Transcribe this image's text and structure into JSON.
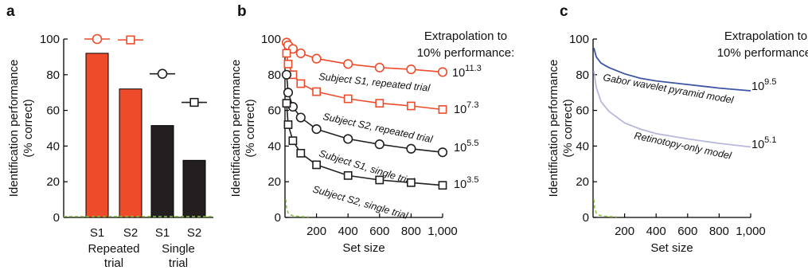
{
  "panel_labels": [
    "a",
    "b",
    "c"
  ],
  "colors": {
    "red": "#ee4b2b",
    "black": "#231f20",
    "chance": "#8cc63f",
    "gabor": "#3d55a3",
    "retino": "#b8b8dd"
  },
  "chart_data": [
    {
      "panel": "a",
      "type": "bar",
      "xlabel": "",
      "ylabel_lines": [
        "Identification performance",
        "(% correct)"
      ],
      "ylim": [
        0,
        100
      ],
      "yticks": [
        "0",
        "20",
        "40",
        "60",
        "80",
        "100"
      ],
      "categories": [
        "S1",
        "S2",
        "S1",
        "S2"
      ],
      "groups": [
        {
          "label_lines": [
            "Repeated",
            "trial"
          ]
        },
        {
          "label_lines": [
            "Single",
            "trial"
          ]
        }
      ],
      "values": [
        92,
        72,
        51.5,
        32
      ],
      "marker_values": [
        100,
        99.5,
        80.5,
        64.5
      ],
      "markers": [
        "circle",
        "square",
        "circle",
        "square"
      ],
      "bar_colors": [
        "red",
        "red",
        "black",
        "black"
      ],
      "chance_level": 0.5
    },
    {
      "panel": "b",
      "type": "line",
      "xlabel": "Set size",
      "ylabel_lines": [
        "Identification performance",
        "(% correct)"
      ],
      "xlim": [
        0,
        1000
      ],
      "ylim": [
        0,
        100
      ],
      "xticks": [
        "200",
        "400",
        "600",
        "800",
        "1,000"
      ],
      "yticks": [
        "0",
        "20",
        "40",
        "60",
        "80",
        "100"
      ],
      "extrapolation_title_lines": [
        "Extrapolation to",
        "10% performance:"
      ],
      "x": [
        10,
        20,
        50,
        100,
        200,
        400,
        600,
        800,
        1000
      ],
      "series": [
        {
          "name": "Subject S1, repeated trial",
          "marker": "circle",
          "color": "red",
          "values": [
            98,
            96.5,
            94.5,
            92,
            89,
            86,
            84,
            83,
            81.5
          ],
          "extrapolation": {
            "base": "10",
            "exponent": "11.3"
          }
        },
        {
          "name": "Subject S2, repeated trial",
          "marker": "square",
          "color": "red",
          "values": [
            92,
            86,
            80,
            75,
            70.5,
            66.5,
            64,
            62.5,
            60.5
          ],
          "extrapolation": {
            "base": "10",
            "exponent": "7.3"
          }
        },
        {
          "name": "Subject S1, single trial",
          "marker": "circle",
          "color": "black",
          "values": [
            80,
            70,
            62,
            56,
            49.5,
            44,
            41,
            38.5,
            36.5
          ],
          "extrapolation": {
            "base": "10",
            "exponent": "5.5"
          }
        },
        {
          "name": "Subject S2, single trial",
          "marker": "square",
          "color": "black",
          "values": [
            64,
            52,
            43,
            36,
            29.5,
            23.5,
            21,
            19.5,
            18
          ],
          "extrapolation": {
            "base": "10",
            "exponent": "3.5"
          }
        }
      ],
      "chance": {
        "x": [
          5,
          10,
          20,
          40,
          60,
          100,
          150
        ],
        "values": [
          10,
          5,
          2.5,
          1.25,
          0.8,
          0.5,
          0.3
        ]
      }
    },
    {
      "panel": "c",
      "type": "line",
      "xlabel": "Set size",
      "ylabel_lines": [
        "Identification performance",
        "(% correct)"
      ],
      "xlim": [
        0,
        1000
      ],
      "ylim": [
        0,
        100
      ],
      "xticks": [
        "200",
        "400",
        "600",
        "800",
        "1,000"
      ],
      "yticks": [
        "0",
        "20",
        "40",
        "60",
        "80",
        "100"
      ],
      "extrapolation_title_lines": [
        "Extrapolation to",
        "10% performance:"
      ],
      "x": [
        5,
        20,
        50,
        100,
        200,
        300,
        400,
        600,
        800,
        1000
      ],
      "series": [
        {
          "name": "Gabor wavelet pyramid model",
          "color": "gabor",
          "values": [
            95,
            90,
            86.5,
            84,
            80.5,
            78,
            76.5,
            74.5,
            72.5,
            71
          ],
          "extrapolation": {
            "base": "10",
            "exponent": "9.5"
          }
        },
        {
          "name": "Retinotopy-only model",
          "color": "retino",
          "values": [
            82,
            73,
            65,
            59.5,
            53,
            49.5,
            47,
            44,
            41.5,
            39.5
          ],
          "extrapolation": {
            "base": "10",
            "exponent": "5.1"
          }
        }
      ],
      "chance": {
        "x": [
          5,
          10,
          20,
          40,
          60,
          100,
          150
        ],
        "values": [
          10,
          5,
          2.5,
          1.25,
          0.8,
          0.5,
          0.3
        ]
      }
    }
  ]
}
